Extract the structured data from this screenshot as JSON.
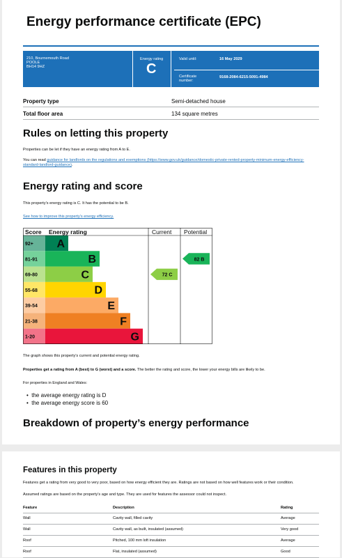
{
  "header": {
    "title": "Energy performance certificate (EPC)"
  },
  "summary": {
    "address": [
      "210, Bournemouth Road",
      "POOLE",
      "BH14 9HZ"
    ],
    "rating_label": "Energy rating",
    "rating": "C",
    "valid_label": "Valid until:",
    "valid_date": "16 May 2029",
    "cert_label": "Certificate number:",
    "cert_number": "9168-2084-6215-5091-4984"
  },
  "property_table": {
    "rows": [
      [
        "Property type",
        "Semi-detached house"
      ],
      [
        "Total floor area",
        "134 square metres"
      ]
    ]
  },
  "letting": {
    "heading": "Rules on letting this property",
    "para1": "Properties can be let if they have an energy rating from A to E.",
    "para2_before": "You can read",
    "para2_link": "guidance for landlords on the regulations and exemptions (https://www.gov.uk/guidance/domestic-private-rented-property-minimum-energy-efficiency-standard-landlord-guidance)",
    "para2_after": "."
  },
  "rating": {
    "heading": "Energy rating and score",
    "intro": "This property’s energy rating is C. It has the potential to be B.",
    "link": "See how to improve this property’s energy efficiency.",
    "graph": {
      "headers": [
        "Score",
        "Energy rating",
        "Current",
        "Potential"
      ],
      "bands": [
        {
          "score": "92+",
          "letter": "A"
        },
        {
          "score": "81-91",
          "letter": "B"
        },
        {
          "score": "69-80",
          "letter": "C"
        },
        {
          "score": "55-68",
          "letter": "D"
        },
        {
          "score": "39-54",
          "letter": "E"
        },
        {
          "score": "21-38",
          "letter": "F"
        },
        {
          "score": "1-20",
          "letter": "G"
        }
      ],
      "current": "72 C",
      "potential": "82 B"
    },
    "caption": "The graph shows this property’s current and potential energy rating.",
    "bold": "Properties get a rating from A (best) to G (worst) and a score.",
    "rest": "The better the rating and score, the lower your energy bills are likely to be.",
    "england": "For properties in England and Wales:",
    "bullets": [
      "the average energy rating is D",
      "the average energy score is 60"
    ]
  },
  "breakdown": {
    "heading": "Breakdown of property’s energy performance"
  },
  "features": {
    "heading": "Features in this property",
    "para1": "Features get a rating from very good to very poor, based on how energy efficient they are. Ratings are not based on how well features work or their condition.",
    "para2": "Assumed ratings are based on the property’s age and type. They are used for features the assessor could not inspect.",
    "table": {
      "headers": [
        "Feature",
        "Description",
        "Rating"
      ],
      "rows": [
        [
          "Wall",
          "Cavity wall, filled cavity",
          "Average"
        ],
        [
          "Wall",
          "Cavity wall, as built, insulated (assumed)",
          "Very good"
        ],
        [
          "Roof",
          "Pitched, 100 mm loft insulation",
          "Average"
        ],
        [
          "Roof",
          "Flat, insulated (assumed)",
          "Good"
        ]
      ]
    }
  }
}
